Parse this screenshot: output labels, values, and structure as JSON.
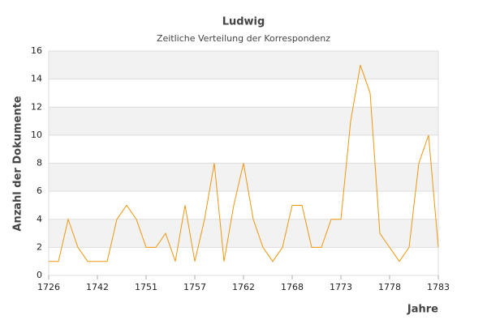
{
  "chart_data": {
    "type": "line",
    "title": "Ludwig",
    "subtitle": "Zeitliche Verteilung der Korrespondenz",
    "x_label": "Jahre",
    "y_label": "Anzahl der Dokumente",
    "categories": [
      "1726",
      null,
      null,
      null,
      null,
      "1742",
      null,
      null,
      null,
      null,
      "1751",
      null,
      null,
      null,
      null,
      "1757",
      null,
      null,
      null,
      null,
      "1762",
      null,
      null,
      null,
      null,
      "1768",
      null,
      null,
      null,
      null,
      "1773",
      null,
      null,
      null,
      null,
      "1778",
      null,
      null,
      null,
      null,
      "1783"
    ],
    "values": [
      1,
      1,
      4,
      2,
      1,
      1,
      1,
      4,
      5,
      4,
      2,
      2,
      3,
      1,
      5,
      1,
      4,
      8,
      1,
      5,
      8,
      4,
      2,
      1,
      2,
      5,
      5,
      2,
      2,
      4,
      4,
      11,
      15,
      13,
      3,
      2,
      1,
      2,
      8,
      10,
      2
    ],
    "color": "#f0960f",
    "ylim": [
      0,
      16
    ],
    "yticks": [
      0,
      2,
      4,
      6,
      8,
      10,
      12,
      14,
      16
    ],
    "grid": true
  }
}
